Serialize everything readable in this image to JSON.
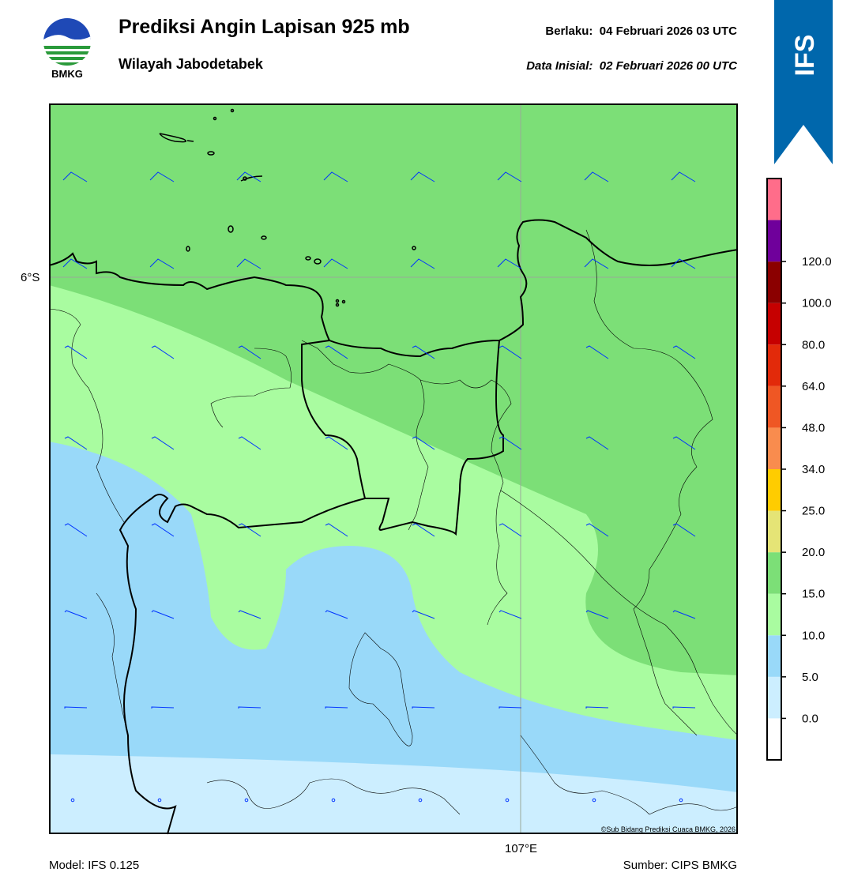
{
  "header": {
    "title": "Prediksi Angin Lapisan 925 mb",
    "subtitle": "Wilayah Jabodetabek",
    "valid_label": "Berlaku:",
    "valid_time": "04 Februari 2026 03 UTC",
    "initial_label": "Data Inisial:",
    "initial_time": "02 Februari 2026 00 UTC"
  },
  "logo": {
    "text": "BMKG",
    "icon": "bmkg-logo-icon"
  },
  "ribbon": {
    "text": "IFS",
    "color": "#0067ac"
  },
  "map": {
    "lat_label": "6°S",
    "lon_label": "107°E",
    "copyright": "©Sub Bidang Prediksi Cuaca BMKG, 2026",
    "wind_barb_color": "#0033ff",
    "boundary_color": "#000000"
  },
  "colorbar": {
    "labels": [
      "120.0",
      "100.0",
      "80.0",
      "64.0",
      "48.0",
      "34.0",
      "25.0",
      "20.0",
      "15.0",
      "10.0",
      "5.0",
      "0.0"
    ],
    "colors": [
      "#ffffff",
      "#cceeff",
      "#99d9f9",
      "#a9fca0",
      "#7cdf77",
      "#e5e476",
      "#ffcc00",
      "#f98c4e",
      "#ef5724",
      "#e22a0a",
      "#c60000",
      "#8b0000",
      "#6f009b",
      "#ff6d8a"
    ]
  },
  "footer": {
    "model": "Model: IFS 0.125",
    "source": "Sumber: CIPS BMKG"
  }
}
